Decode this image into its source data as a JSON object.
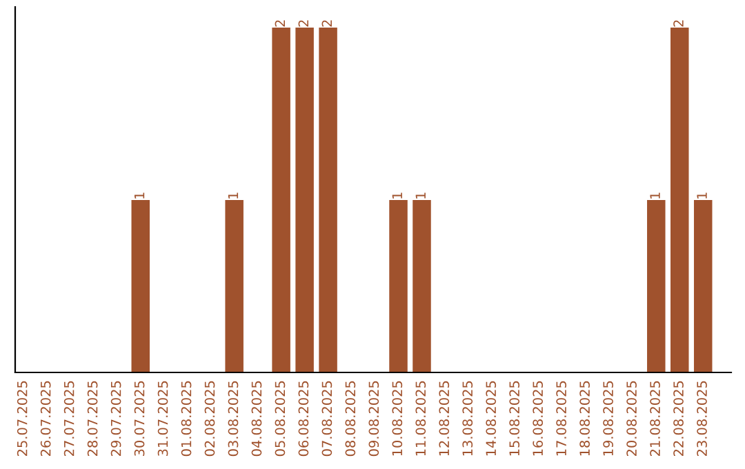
{
  "chart_data": {
    "type": "bar",
    "categories": [
      "25.07.2025",
      "26.07.2025",
      "27.07.2025",
      "28.07.2025",
      "29.07.2025",
      "30.07.2025",
      "31.07.2025",
      "01.08.2025",
      "02.08.2025",
      "03.08.2025",
      "04.08.2025",
      "05.08.2025",
      "06.08.2025",
      "07.08.2025",
      "08.08.2025",
      "09.08.2025",
      "10.08.2025",
      "11.08.2025",
      "12.08.2025",
      "13.08.2025",
      "14.08.2025",
      "15.08.2025",
      "16.08.2025",
      "17.08.2025",
      "18.08.2025",
      "19.08.2025",
      "20.08.2025",
      "21.08.2025",
      "22.08.2025",
      "23.08.2025"
    ],
    "values": [
      0,
      0,
      0,
      0,
      0,
      1,
      0,
      0,
      0,
      1,
      0,
      2,
      2,
      2,
      0,
      0,
      1,
      1,
      0,
      0,
      0,
      0,
      0,
      0,
      0,
      0,
      0,
      1,
      2,
      1
    ],
    "value_labels": [
      null,
      null,
      null,
      null,
      null,
      "1",
      null,
      null,
      null,
      "1",
      null,
      "2",
      "2",
      "2",
      null,
      null,
      "1",
      "1",
      null,
      null,
      null,
      null,
      null,
      null,
      null,
      null,
      null,
      "1",
      "2",
      "1"
    ],
    "color": "#a0522d",
    "grid": false,
    "tick_labels": "x"
  }
}
